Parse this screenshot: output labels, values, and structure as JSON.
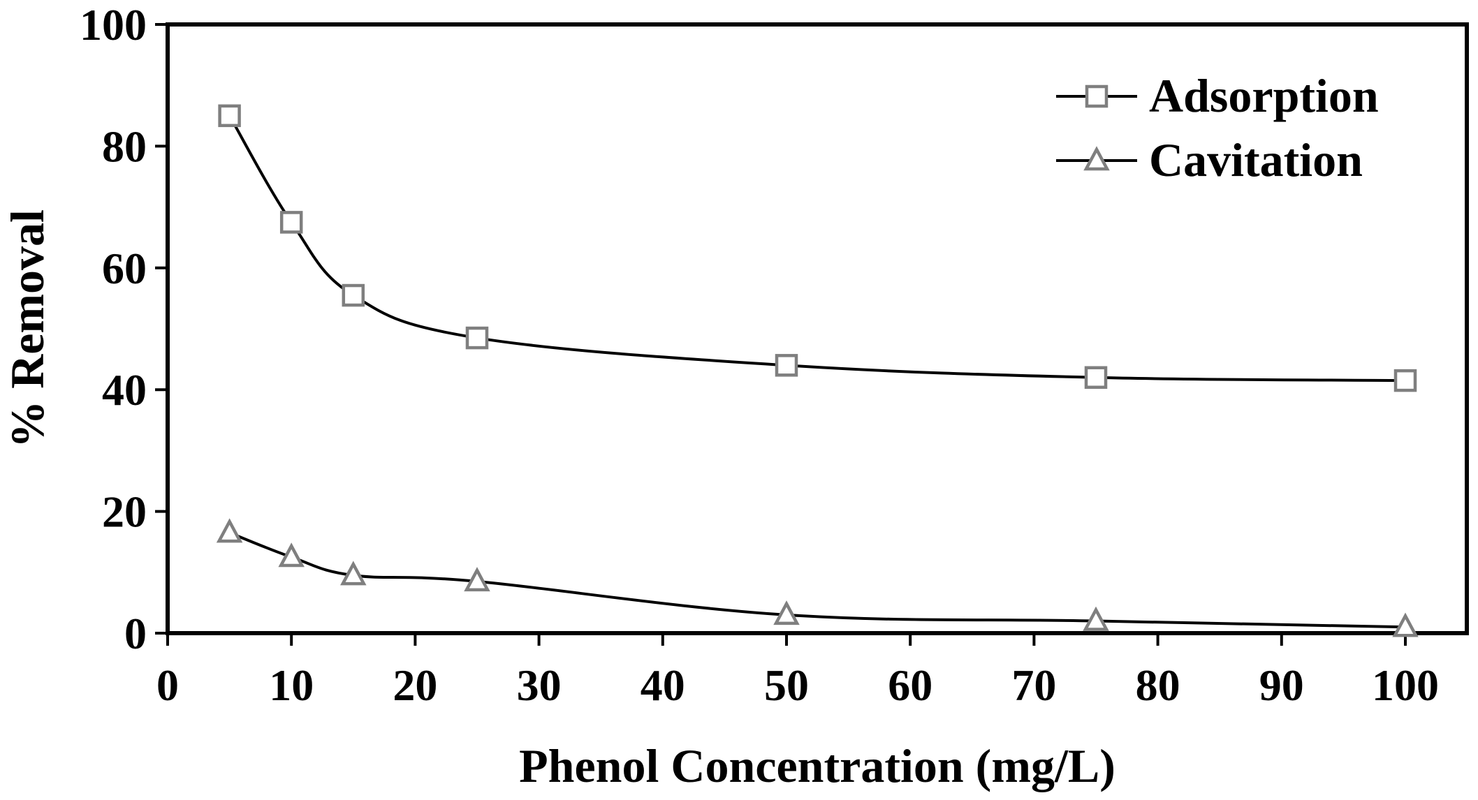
{
  "chart_data": {
    "type": "line",
    "title": "",
    "xlabel": "Phenol Concentration (mg/L)",
    "ylabel": "% Removal",
    "xlim": [
      0,
      105
    ],
    "ylim": [
      0,
      100
    ],
    "xticks": [
      "0",
      "10",
      "20",
      "30",
      "40",
      "50",
      "60",
      "70",
      "80",
      "90",
      "100"
    ],
    "yticks": [
      "0",
      "20",
      "40",
      "60",
      "80",
      "100"
    ],
    "x": [
      5,
      10,
      15,
      25,
      50,
      75,
      100
    ],
    "grid": false,
    "legend_position": "top-right",
    "series": [
      {
        "name": "Adsorption",
        "marker": "square",
        "values": [
          85,
          67.5,
          55.5,
          48.5,
          44,
          42,
          41.5
        ],
        "line_color": "#000000",
        "marker_color": "#7f7f7f"
      },
      {
        "name": "Cavitation",
        "marker": "triangle",
        "values": [
          16.5,
          12.5,
          9.5,
          8.5,
          3,
          2,
          1
        ],
        "line_color": "#000000",
        "marker_color": "#7f7f7f"
      }
    ]
  }
}
